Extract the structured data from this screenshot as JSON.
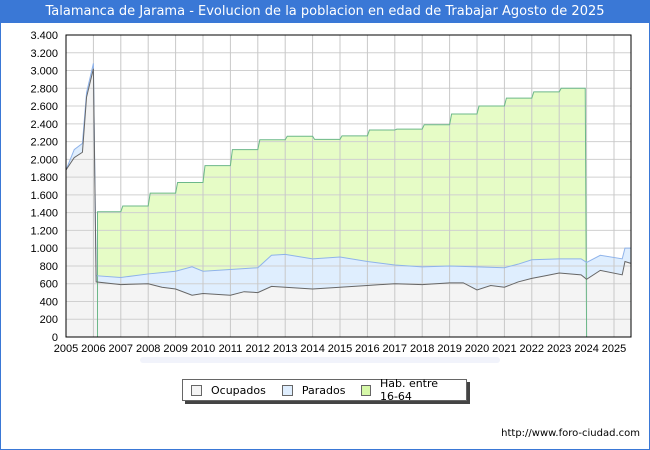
{
  "title": "Talamanca de Jarama - Evolucion de la poblacion en edad de Trabajar Agosto de 2025",
  "credit": "http://www.foro-ciudad.com",
  "watermark": "FORO-CIUDAD.COM",
  "chart_data": {
    "type": "area",
    "title": "Talamanca de Jarama - Evolucion de la poblacion en edad de Trabajar Agosto de 2025",
    "ylim": [
      0,
      3400
    ],
    "yticks": [
      0,
      200,
      400,
      600,
      800,
      1000,
      1200,
      1400,
      1600,
      1800,
      2000,
      2200,
      2400,
      2600,
      2800,
      3000,
      3200,
      3400
    ],
    "ytick_labels": [
      "0",
      "200",
      "400",
      "600",
      "800",
      "1.000",
      "1.200",
      "1.400",
      "1.600",
      "1.800",
      "2.000",
      "2.200",
      "2.400",
      "2.600",
      "2.800",
      "3.000",
      "3.200",
      "3.400"
    ],
    "xticks": [
      "2005",
      "2006",
      "2007",
      "2008",
      "2009",
      "2010",
      "2011",
      "2012",
      "2013",
      "2014",
      "2015",
      "2016",
      "2017",
      "2018",
      "2019",
      "2020",
      "2021",
      "2022",
      "2023",
      "2024",
      "2025"
    ],
    "xlim": [
      2005,
      2025.6
    ],
    "grid": true,
    "legend_position": "bottom",
    "legend": [
      "Ocupados",
      "Parados",
      "Hab. entre 16-64"
    ],
    "colors": {
      "ocupados": "#f4f4f4",
      "ocupados_line": "#666666",
      "parados": "#dfeefe",
      "parados_line": "#8fb3ea",
      "hab": "#e6fcc6",
      "hab_line": "#6cb889"
    },
    "ocupados": {
      "x": [
        2005,
        2005.3,
        2005.6,
        2005.75,
        2006,
        2006.1,
        2007,
        2008,
        2008.5,
        2009,
        2009.6,
        2010,
        2011,
        2011.5,
        2012,
        2012.5,
        2013,
        2014,
        2015,
        2016,
        2017,
        2018,
        2019,
        2019.5,
        2020,
        2020.5,
        2021,
        2021.5,
        2022,
        2022.5,
        2023,
        2023.8,
        2024,
        2024.5,
        2025.3,
        2025.4,
        2025.6
      ],
      "y": [
        1880,
        2020,
        2080,
        2700,
        3020,
        620,
        590,
        600,
        560,
        540,
        470,
        490,
        470,
        510,
        500,
        570,
        560,
        540,
        560,
        580,
        600,
        590,
        610,
        610,
        530,
        580,
        560,
        620,
        660,
        690,
        720,
        700,
        650,
        750,
        700,
        850,
        830
      ]
    },
    "ocupados_mas_parados": {
      "x": [
        2005,
        2005.3,
        2005.6,
        2005.75,
        2006,
        2006.1,
        2007,
        2008,
        2009,
        2009.6,
        2010,
        2011,
        2012,
        2012.5,
        2013,
        2014,
        2015,
        2016,
        2017,
        2018,
        2019,
        2020,
        2021,
        2021.5,
        2022,
        2023,
        2023.8,
        2024,
        2024.5,
        2025.3,
        2025.4,
        2025.6
      ],
      "y": [
        1880,
        2110,
        2180,
        2750,
        3080,
        690,
        670,
        710,
        740,
        790,
        740,
        760,
        780,
        920,
        930,
        880,
        900,
        850,
        810,
        790,
        800,
        790,
        780,
        820,
        870,
        880,
        880,
        840,
        920,
        880,
        1000,
        1000
      ]
    },
    "hab_entre_16_64": {
      "years": [
        2006,
        2007,
        2008,
        2009,
        2010,
        2011,
        2012,
        2013,
        2014,
        2015,
        2016,
        2017,
        2018,
        2019,
        2020,
        2021,
        2022,
        2023
      ],
      "y": [
        1410,
        1475,
        1620,
        1740,
        1930,
        2110,
        2220,
        2260,
        2225,
        2265,
        2330,
        2340,
        2390,
        2510,
        2600,
        2690,
        2760,
        2800
      ]
    }
  }
}
